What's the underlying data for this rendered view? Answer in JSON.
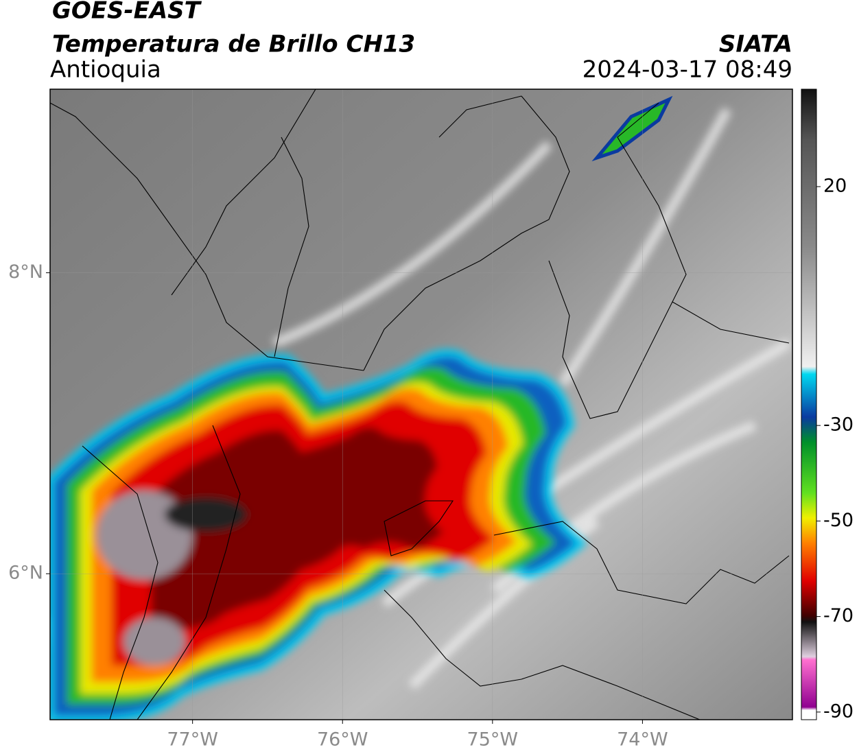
{
  "header": {
    "satellite": "GOES-EAST",
    "product": "Temperatura de Brillo CH13",
    "region": "Antioquia",
    "source": "SIATA",
    "datetime": "2024-03-17 08:49"
  },
  "map": {
    "xlim": [
      -77.95,
      -73.0
    ],
    "ylim": [
      5.03,
      9.22
    ],
    "xticks": [
      {
        "value": -77,
        "label": "77°W"
      },
      {
        "value": -76,
        "label": "76°W"
      },
      {
        "value": -75,
        "label": "75°W"
      },
      {
        "value": -74,
        "label": "74°W"
      }
    ],
    "yticks": [
      {
        "value": 8,
        "label": "8°N"
      },
      {
        "value": 6,
        "label": "6°N"
      }
    ]
  },
  "colorbar": {
    "lim": [
      -91.6,
      40.4
    ],
    "ticks": [
      20,
      -30,
      -50,
      -70,
      -90
    ]
  }
}
